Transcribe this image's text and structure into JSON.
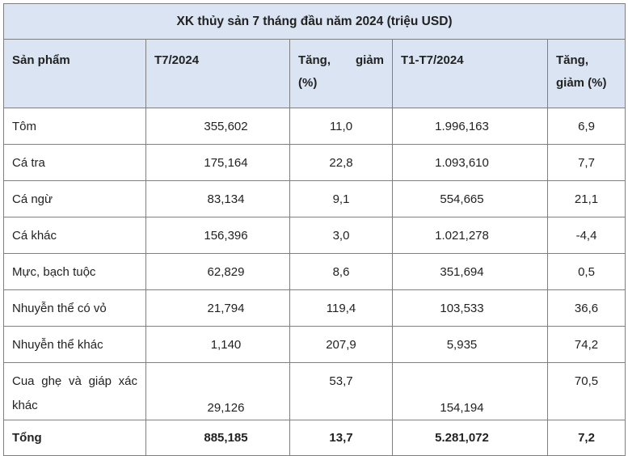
{
  "table": {
    "title": "XK thủy sản 7 tháng đầu năm 2024 (triệu USD)",
    "headers": {
      "product": "Sản phẩm",
      "t7": "T7/2024",
      "change1": "Tăng, giảm (%)",
      "cumulative": "T1-T7/2024",
      "change2": "Tăng, giảm (%)"
    },
    "rows": [
      {
        "product": "Tôm",
        "t7": "355,602",
        "change1": "11,0",
        "cumulative": "1.996,163",
        "change2": "6,9"
      },
      {
        "product": "Cá tra",
        "t7": "175,164",
        "change1": "22,8",
        "cumulative": "1.093,610",
        "change2": "7,7"
      },
      {
        "product": "Cá ngừ",
        "t7": "83,134",
        "change1": "9,1",
        "cumulative": "554,665",
        "change2": "21,1"
      },
      {
        "product": "Cá khác",
        "t7": "156,396",
        "change1": "3,0",
        "cumulative": "1.021,278",
        "change2": "-4,4"
      },
      {
        "product": "Mực, bạch tuộc",
        "t7": "62,829",
        "change1": "8,6",
        "cumulative": "351,694",
        "change2": "0,5"
      },
      {
        "product": "Nhuyễn thể có vỏ",
        "t7": "21,794",
        "change1": "119,4",
        "cumulative": "103,533",
        "change2": "36,6"
      },
      {
        "product": "Nhuyễn thể khác",
        "t7": "1,140",
        "change1": "207,9",
        "cumulative": "5,935",
        "change2": "74,2"
      },
      {
        "product": "Cua ghẹ và giáp xác khác",
        "t7": "29,126",
        "change1": "53,7",
        "cumulative": "154,194",
        "change2": "70,5"
      }
    ],
    "total": {
      "product": "Tổng",
      "t7": "885,185",
      "change1": "13,7",
      "cumulative": "5.281,072",
      "change2": "7,2"
    }
  }
}
